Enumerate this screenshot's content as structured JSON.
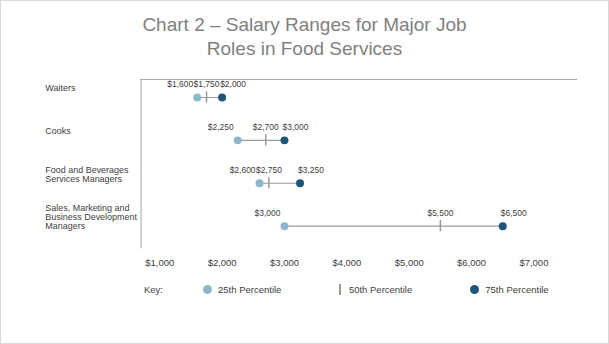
{
  "chart_data": {
    "type": "dumbbell",
    "title": "Chart 2 – Salary Ranges for Major Job Roles in Food Services",
    "orientation": "horizontal",
    "categories": [
      "Sales, Marketing and Business Development Managers",
      "Food and Beverages Services Managers",
      "Cooks",
      "Waiters"
    ],
    "series": [
      {
        "name": "25th Percentile",
        "color": "#8fb7cc",
        "marker": "circle",
        "values": [
          3000,
          2600,
          2250,
          1600
        ],
        "value_labels": [
          "$3,000",
          "$2,600",
          "$2,250",
          "$1,600"
        ]
      },
      {
        "name": "50th Percentile",
        "color": "#9a9a9a",
        "marker": "tick",
        "values": [
          5500,
          2750,
          2700,
          1750
        ],
        "value_labels": [
          "$5,500",
          "$2,750",
          "$2,700",
          "$1,750"
        ]
      },
      {
        "name": "75th Percentile",
        "color": "#1f5578",
        "marker": "circle",
        "values": [
          6500,
          3250,
          3000,
          2000
        ],
        "value_labels": [
          "$6,500",
          "$3,250",
          "$3,000",
          "$2,000"
        ]
      }
    ],
    "xlim": [
      700,
      7700
    ],
    "xticks": [
      {
        "value": 1000,
        "label": "$1,000"
      },
      {
        "value": 2000,
        "label": "$2,000"
      },
      {
        "value": 3000,
        "label": "$3,000"
      },
      {
        "value": 4000,
        "label": "$4,000"
      },
      {
        "value": 5000,
        "label": "$5,000"
      },
      {
        "value": 6000,
        "label": "$6,000"
      },
      {
        "value": 7000,
        "label": "$7,000"
      }
    ],
    "grid": false,
    "data_labels": true,
    "legend": "bottom",
    "legend_title": "Key:"
  }
}
